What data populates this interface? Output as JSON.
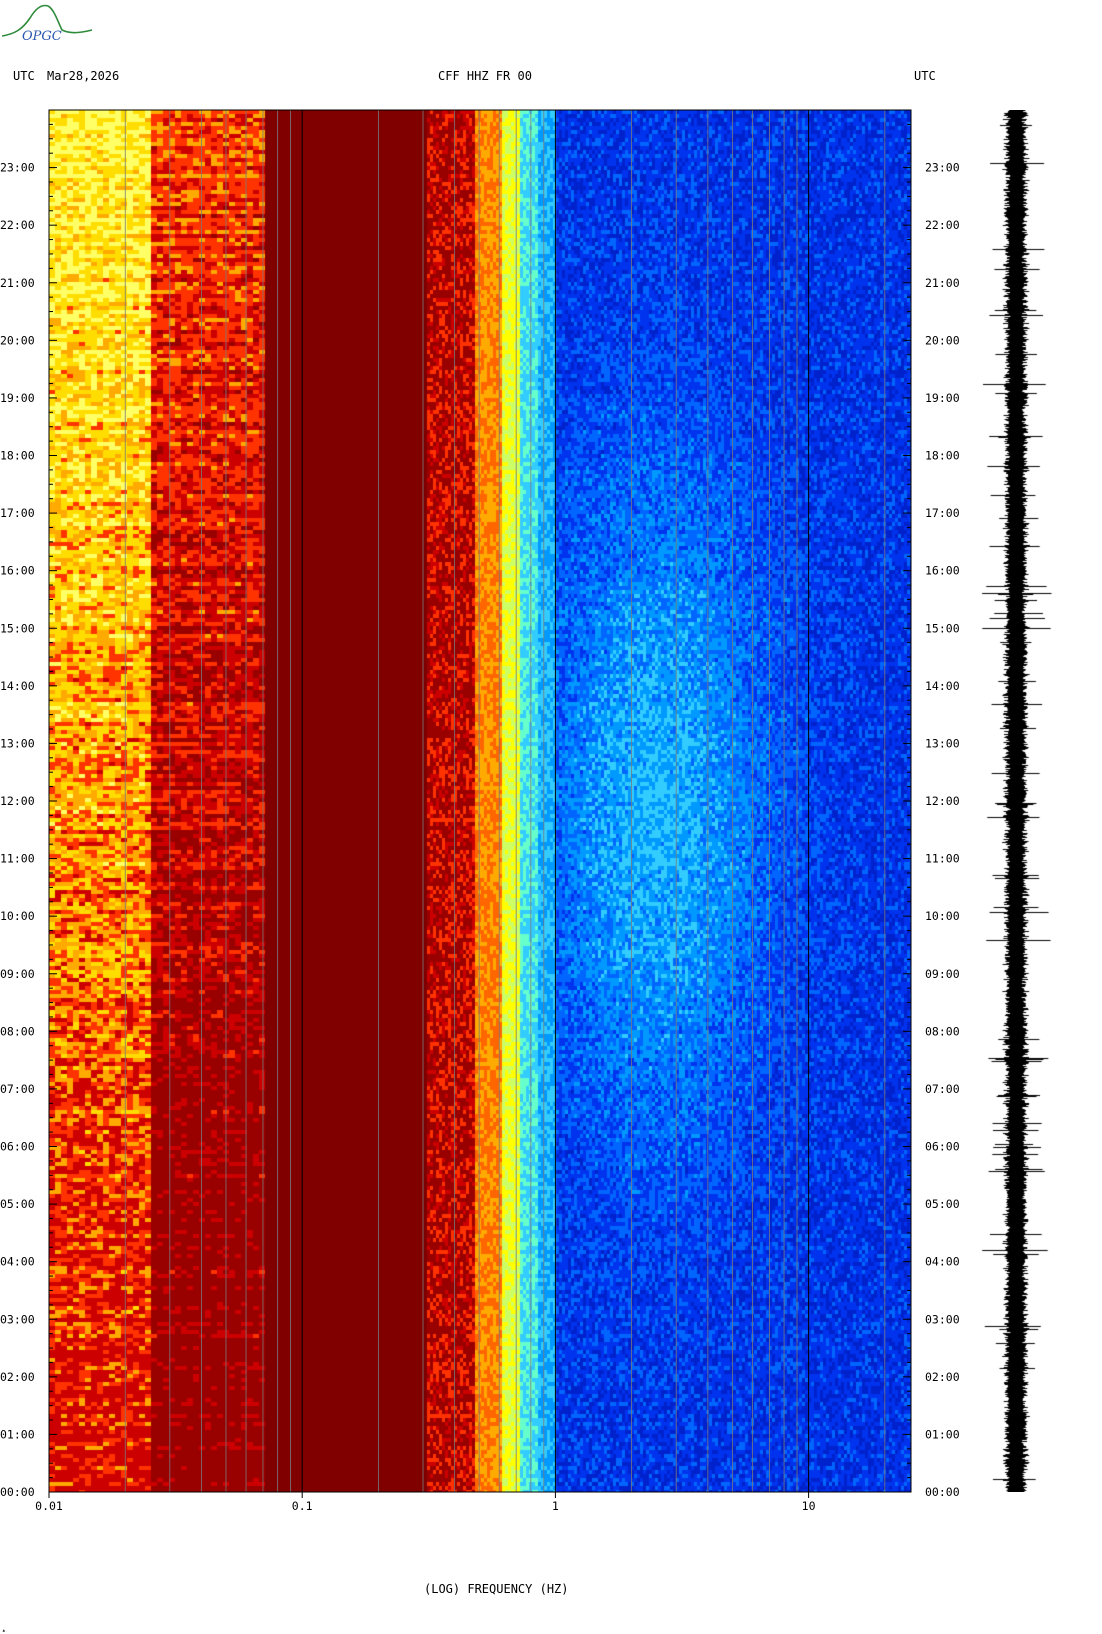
{
  "header": {
    "left_tz": "UTC",
    "date": "Mar28,2026",
    "station": "CFF HHZ FR 00",
    "right_tz": "UTC"
  },
  "logo": {
    "text": "OPGC",
    "color": "#2e8b3a"
  },
  "chart_data": {
    "type": "heatmap",
    "title": "CFF HHZ FR 00",
    "xlabel": "(LOG) FREQUENCY (HZ)",
    "ylabel": "",
    "x_scale": "log",
    "xlim": [
      0.01,
      25
    ],
    "x_ticks": [
      {
        "value": 0.01,
        "label": "0.01"
      },
      {
        "value": 0.1,
        "label": "0.1"
      },
      {
        "value": 1,
        "label": "1"
      },
      {
        "value": 10,
        "label": "10"
      }
    ],
    "y_ticks_hours": [
      "00:00",
      "01:00",
      "02:00",
      "03:00",
      "04:00",
      "05:00",
      "06:00",
      "07:00",
      "08:00",
      "09:00",
      "10:00",
      "11:00",
      "12:00",
      "13:00",
      "14:00",
      "15:00",
      "16:00",
      "17:00",
      "18:00",
      "19:00",
      "20:00",
      "21:00",
      "22:00",
      "23:00"
    ],
    "ylim_hours": [
      0,
      24
    ],
    "colormap": [
      "#0000cc",
      "#0033ff",
      "#0099ff",
      "#33ccff",
      "#ccff66",
      "#ffff00",
      "#ffaa00",
      "#ff3300",
      "#cc0000",
      "#800000"
    ],
    "band_colors": {
      "very_low": "#ffcc00",
      "low": "#cc0000",
      "microseism": "#800000",
      "transition": "#ff3300",
      "high": "#1033e8"
    },
    "grid": true,
    "seismogram": {
      "color": "#000000"
    }
  }
}
